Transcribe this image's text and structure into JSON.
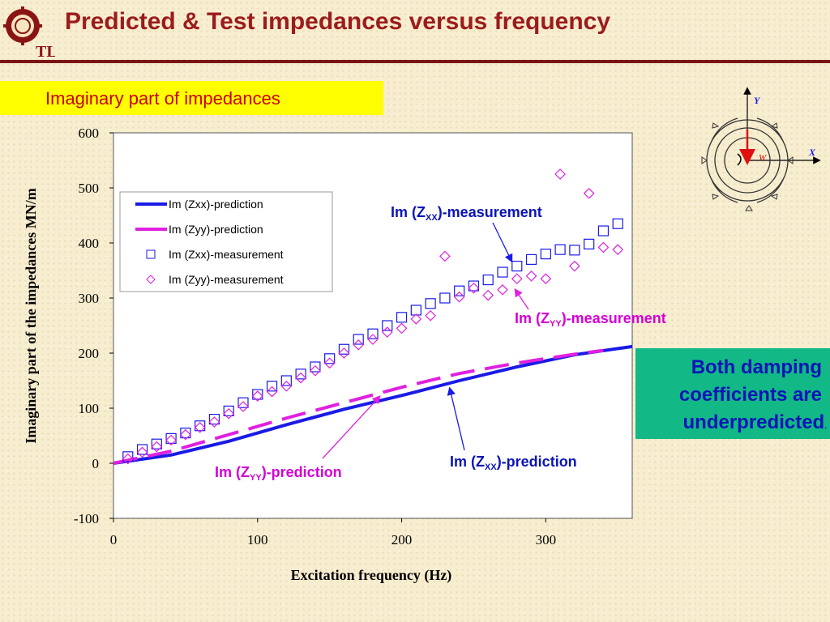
{
  "header": {
    "title": "Predicted & Test impedances versus frequency",
    "logo_label": "logo",
    "logo_text": "TL"
  },
  "subtitle": "Imaginary part of impedances",
  "note": {
    "line1": "Both damping",
    "line2": "coefficients are",
    "line3": "underpredicted",
    "dot": "."
  },
  "annotations": {
    "zxx_meas": {
      "pre": "Im (Z",
      "sub": "XX",
      "post": ")-measurement"
    },
    "zyy_meas": {
      "pre": "Im (Z",
      "sub": "YY",
      "post": ")-measurement"
    },
    "zyy_pred": {
      "pre": "Im (Z",
      "sub": "YY",
      "post": ")-prediction"
    },
    "zxx_pred": {
      "pre": "Im (Z",
      "sub": "XX",
      "post": ")-prediction"
    }
  },
  "diagram": {
    "y_label": "Y",
    "x_label": "X",
    "w_label": "W"
  },
  "colors": {
    "blue": "#0a14b8",
    "magenta": "#e020e0",
    "title": "#9b1c1c"
  },
  "chart_data": {
    "type": "scatter",
    "title": "",
    "xlabel": "Excitation frequency (Hz)",
    "ylabel": "Imaginary part of the impedances  MN/m",
    "xlim": [
      0,
      360
    ],
    "ylim": [
      -100,
      600
    ],
    "xticks": [
      0,
      100,
      200,
      300
    ],
    "yticks": [
      -100,
      0,
      100,
      200,
      300,
      400,
      500,
      600
    ],
    "grid": false,
    "legend_position": "top-left",
    "series": [
      {
        "name": "Im (Zxx)-prediction",
        "kind": "line",
        "style": "solid",
        "color": "#1a1ae6",
        "x": [
          0,
          40,
          80,
          120,
          160,
          200,
          240,
          280,
          320,
          360
        ],
        "y": [
          0,
          15,
          40,
          70,
          98,
          123,
          150,
          175,
          197,
          212
        ]
      },
      {
        "name": "Im (Zyy)-prediction",
        "kind": "line",
        "style": "dashed",
        "color": "#e020e0",
        "x": [
          0,
          40,
          80,
          120,
          160,
          200,
          240,
          280,
          320,
          340
        ],
        "y": [
          0,
          22,
          52,
          82,
          110,
          138,
          163,
          182,
          198,
          205
        ]
      },
      {
        "name": "Im (Zxx)-measurement",
        "kind": "marker",
        "marker": "square",
        "color": "#1a1ae6",
        "x": [
          10,
          20,
          30,
          40,
          50,
          60,
          70,
          80,
          90,
          100,
          110,
          120,
          130,
          140,
          150,
          160,
          170,
          180,
          190,
          200,
          210,
          220,
          230,
          240,
          250,
          260,
          270,
          280,
          290,
          300,
          310,
          320,
          330,
          340,
          350
        ],
        "y": [
          12,
          25,
          35,
          45,
          55,
          68,
          80,
          95,
          110,
          125,
          140,
          150,
          162,
          175,
          190,
          207,
          225,
          235,
          250,
          265,
          278,
          290,
          300,
          313,
          322,
          333,
          347,
          358,
          370,
          380,
          388,
          387,
          398,
          422,
          435
        ]
      },
      {
        "name": "Im (Zyy)-measurement",
        "kind": "marker",
        "marker": "diamond",
        "color": "#e020e0",
        "x": [
          10,
          20,
          30,
          40,
          50,
          60,
          70,
          80,
          90,
          100,
          110,
          120,
          130,
          140,
          150,
          160,
          170,
          180,
          190,
          200,
          210,
          220,
          230,
          240,
          250,
          260,
          270,
          280,
          290,
          300,
          310,
          320,
          330,
          340,
          350
        ],
        "y": [
          8,
          20,
          30,
          42,
          52,
          65,
          75,
          90,
          103,
          122,
          130,
          140,
          155,
          168,
          182,
          200,
          215,
          225,
          238,
          245,
          262,
          268,
          376,
          302,
          318,
          305,
          315,
          335,
          340,
          335,
          525,
          358,
          490,
          392,
          388
        ]
      }
    ]
  }
}
